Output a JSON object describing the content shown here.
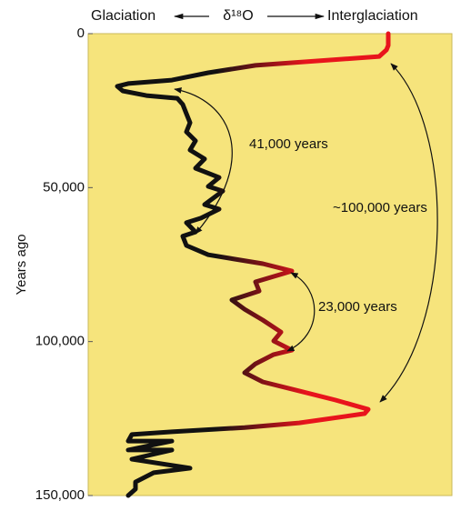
{
  "chart_data": {
    "type": "line",
    "x_label_left": "Glaciation",
    "x_label": "δ¹⁸O",
    "x_label_right": "Interglaciation",
    "y_label": "Years ago",
    "annotations": [
      "41,000 years",
      "23,000 years",
      "~100,000 years"
    ],
    "ylim": [
      0,
      150000
    ],
    "yticks": [
      0,
      {
        "value": 50000,
        "label": "50,000"
      },
      {
        "value": 100000,
        "label": "100,000"
      },
      {
        "value": 150000,
        "label": "150,000"
      }
    ],
    "xlim": [
      0,
      100
    ],
    "colors": [
      "#111111",
      "#e8141c"
    ],
    "background": "#f6e47c",
    "series": [
      {
        "years": [
          0,
          3800,
          5300,
          7400,
          10300,
          12700,
          15100,
          16200,
          17100,
          18600,
          20100,
          21000,
          23000,
          26000,
          28900,
          31900,
          34800,
          37800,
          40700,
          43700,
          46700,
          49600,
          51100,
          55500,
          57000,
          59900,
          61400,
          64400,
          65800,
          68800,
          71800,
          74700,
          77100,
          80600,
          83600,
          86500,
          89500,
          93000,
          96900,
          99800,
          102800,
          104200,
          107200,
          110100,
          113100,
          116000,
          119000,
          122000,
          123400,
          126400,
          127900,
          129300,
          130200,
          132300,
          132300,
          135200,
          135200,
          138200,
          141100,
          142600,
          145600,
          147900,
          150000
        ],
        "values": [
          82.5,
          82.5,
          82,
          80,
          46,
          33,
          23,
          11,
          8,
          9.5,
          16,
          24.5,
          26,
          27,
          28,
          27,
          29.5,
          28,
          32,
          29.5,
          36,
          33,
          37,
          32,
          36,
          31,
          27,
          29.5,
          26,
          27,
          33,
          48,
          56,
          46,
          47,
          39.5,
          43,
          48,
          53,
          51,
          56,
          51,
          46,
          43,
          48,
          58,
          68,
          77,
          76,
          58,
          43,
          23,
          12,
          11,
          23,
          11,
          23,
          12,
          28,
          18,
          13,
          13,
          11
        ]
      }
    ]
  }
}
